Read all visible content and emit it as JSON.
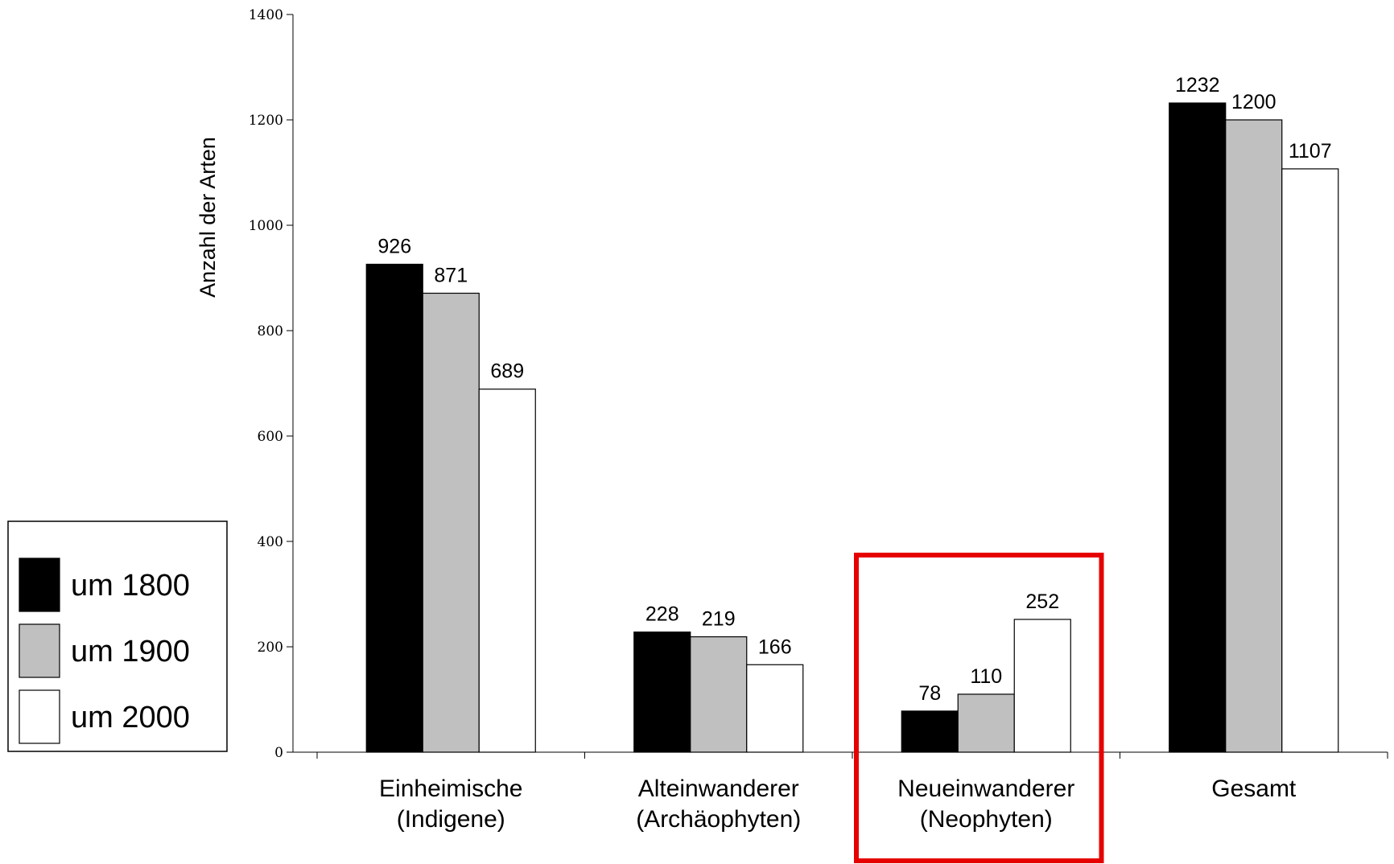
{
  "chart_data": {
    "type": "bar",
    "ylabel": "Anzahl der Arten",
    "ylim": [
      0,
      1400
    ],
    "yticks": [
      0,
      200,
      400,
      600,
      800,
      1000,
      1200,
      1400
    ],
    "categories": [
      [
        "Einheimische",
        "(Indigene)"
      ],
      [
        "Alteinwanderer",
        "(Archäophyten)"
      ],
      [
        "Neueinwanderer",
        "(Neophyten)"
      ],
      [
        "Gesamt"
      ]
    ],
    "series": [
      {
        "name": "um 1800",
        "color": "#000000",
        "values": [
          926,
          228,
          78,
          1232
        ]
      },
      {
        "name": "um 1900",
        "color": "#c0c0c0",
        "values": [
          871,
          219,
          110,
          1200
        ]
      },
      {
        "name": "um 2000",
        "color": "#ffffff",
        "values": [
          689,
          166,
          252,
          1107
        ]
      }
    ],
    "legend_position": "left",
    "highlight": {
      "category_index": 2,
      "color": "#e60000"
    }
  }
}
